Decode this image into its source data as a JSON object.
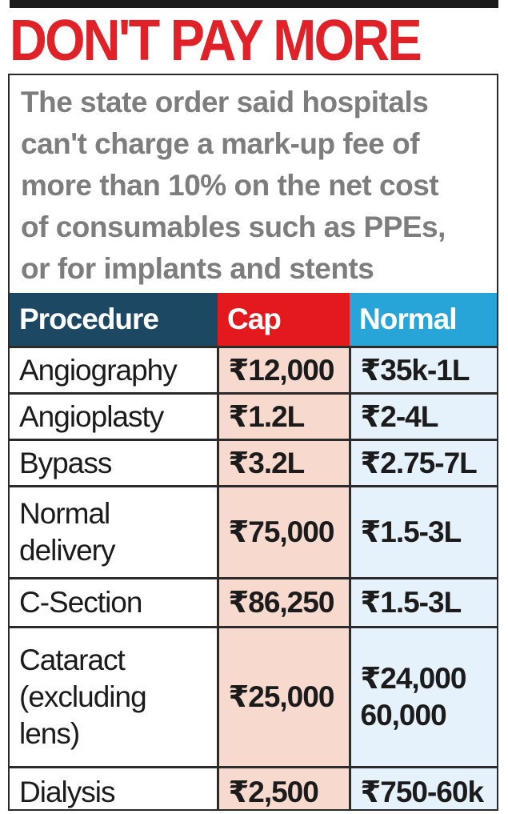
{
  "headline": "DON'T PAY MORE",
  "intro_lines": [
    "The state order said hospitals",
    "can't charge a mark-up fee of",
    "more than 10% on the net cost",
    "of consumables such as PPEs,",
    "or for implants and stents"
  ],
  "table": {
    "headers": {
      "procedure": "Procedure",
      "cap": "Cap",
      "normal": "Normal"
    },
    "rows": [
      {
        "procedure_lines": [
          "Angiography"
        ],
        "cap": "₹12,000",
        "normal": "₹35k-1L"
      },
      {
        "procedure_lines": [
          "Angioplasty"
        ],
        "cap": "₹1.2L",
        "normal": "₹2-4L"
      },
      {
        "procedure_lines": [
          "Bypass"
        ],
        "cap": "₹3.2L",
        "normal": "₹2.75-7L"
      },
      {
        "procedure_lines": [
          "Normal",
          "delivery"
        ],
        "cap": "₹75,000",
        "normal": "₹1.5-3L"
      },
      {
        "procedure_lines": [
          "C-Section"
        ],
        "cap": "₹86,250",
        "normal": "₹1.5-3L"
      },
      {
        "procedure_lines": [
          "Cataract",
          "(excluding",
          "lens)"
        ],
        "cap": "₹25,000",
        "normal_lines": [
          "₹24,000",
          "60,000"
        ]
      },
      {
        "procedure_lines": [
          "Dialysis"
        ],
        "cap": "₹2,500",
        "normal": "₹750-60k"
      }
    ]
  },
  "colors": {
    "headline_red": "#e02128",
    "header_procedure": "#1d4864",
    "header_cap": "#e3191e",
    "header_normal": "#28a5d8",
    "cap_cell": "#f8d9cd",
    "normal_cell": "#e6f2fb",
    "intro_text": "#7d7d7d"
  }
}
